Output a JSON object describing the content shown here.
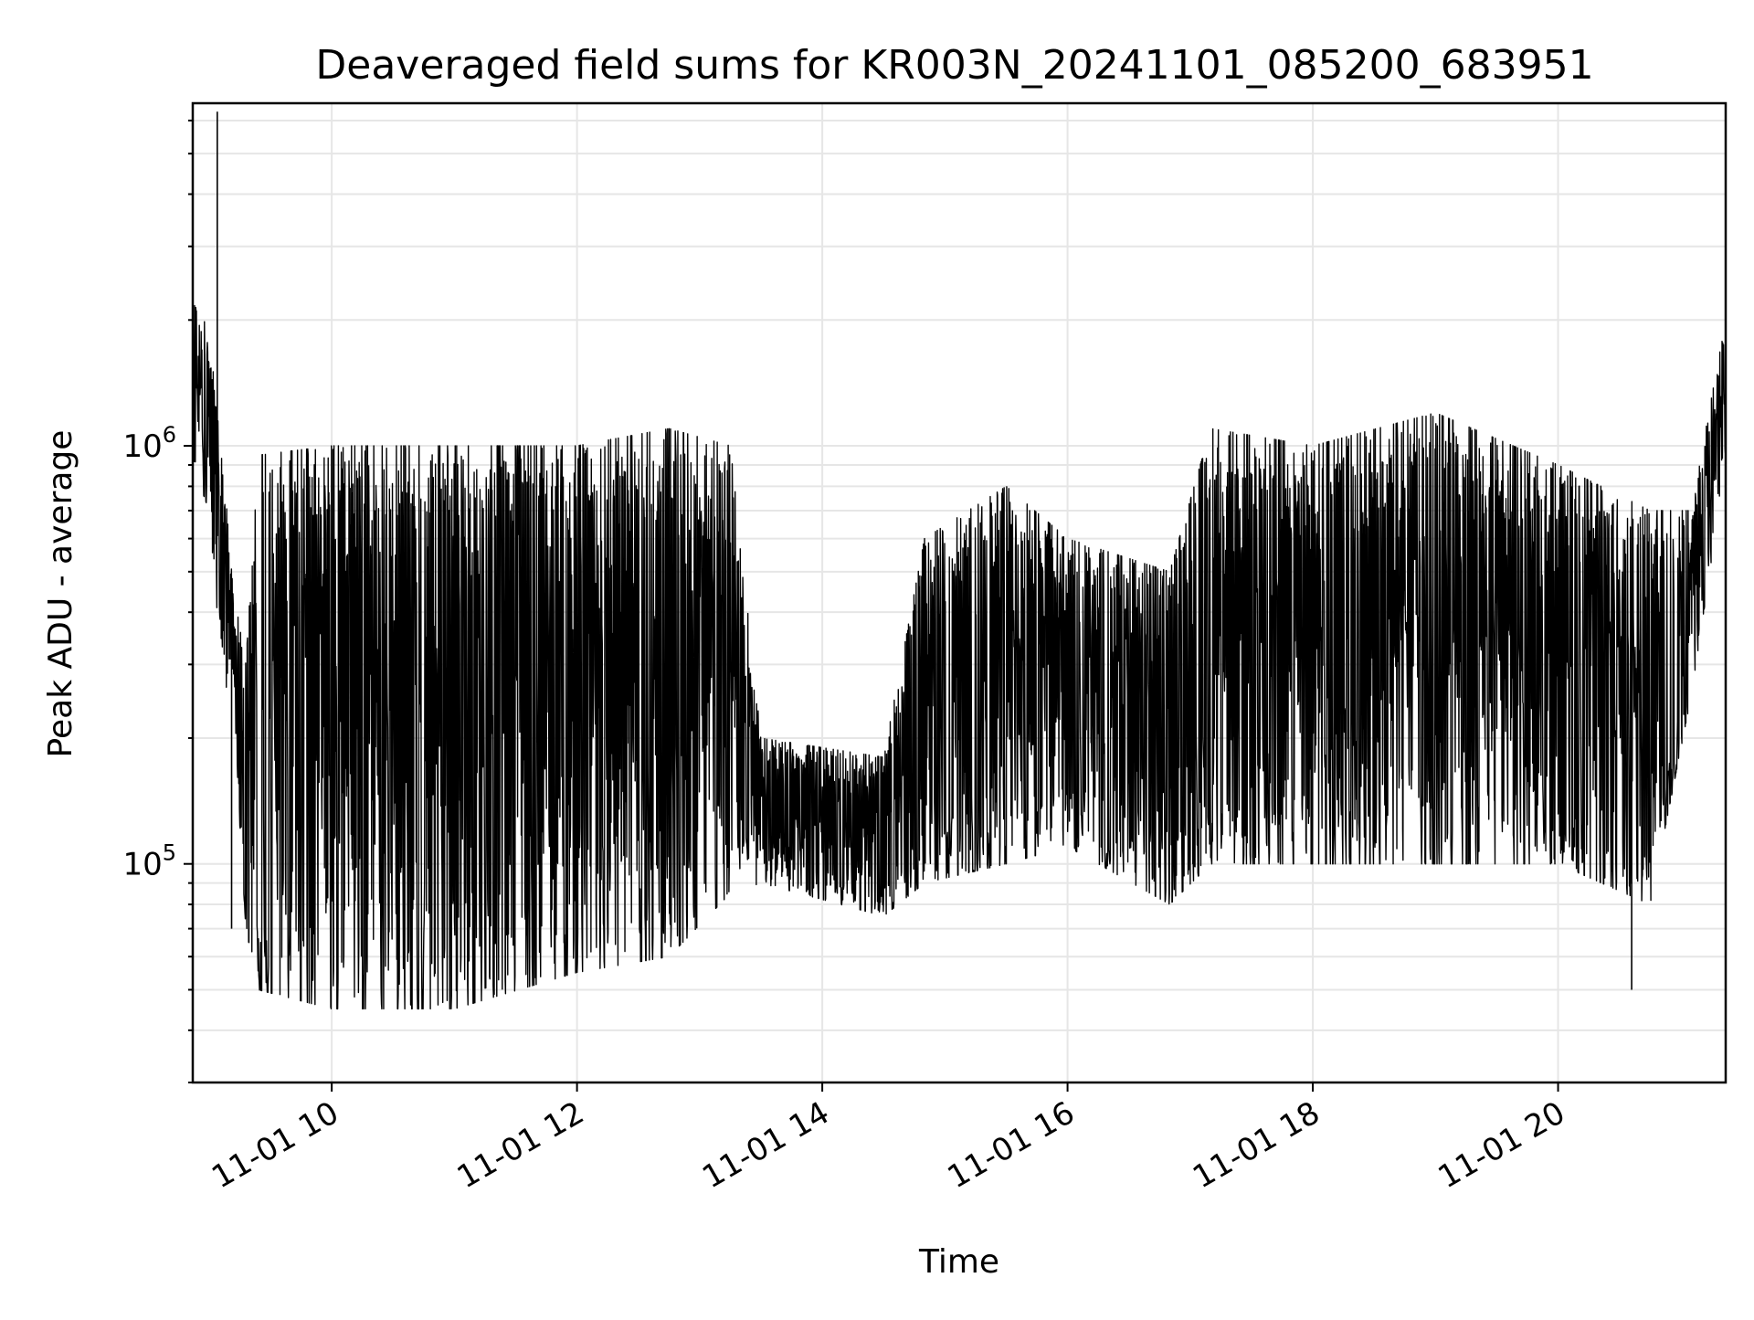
{
  "chart_data": {
    "type": "line",
    "title": "Deaveraged field sums for KR003N_20241101_085200_683951",
    "xlabel": "Time",
    "ylabel": "Peak ADU - average",
    "xscale": "time",
    "yscale": "log",
    "xlim": [
      "2024-11-01 08:52",
      "2024-11-01 21:22"
    ],
    "ylim": [
      30000,
      6600000
    ],
    "x_ticks": [
      "11-01 10",
      "11-01 12",
      "11-01 14",
      "11-01 16",
      "11-01 18",
      "11-01 20"
    ],
    "y_ticks": [
      {
        "base": "10",
        "exp": "5",
        "value": 100000
      },
      {
        "base": "10",
        "exp": "6",
        "value": 1000000
      }
    ],
    "grid": true,
    "legend": "none",
    "line_color": "#000000",
    "series_profile": [
      {
        "time": "2024-11-01 08:52",
        "low": 900000,
        "high": 2200000
      },
      {
        "time": "2024-11-01 09:00",
        "low": 700000,
        "high": 1900000
      },
      {
        "time": "2024-11-01 09:06",
        "low": 300000,
        "high": 1000000
      },
      {
        "time": "2024-11-01 09:12",
        "low": 220000,
        "high": 450000
      },
      {
        "time": "2024-11-01 09:18",
        "low": 70000,
        "high": 300000
      },
      {
        "time": "2024-11-01 09:24",
        "low": 50000,
        "high": 950000
      },
      {
        "time": "2024-11-01 10:00",
        "low": 45000,
        "high": 1000000
      },
      {
        "time": "2024-11-01 11:00",
        "low": 45000,
        "high": 1000000
      },
      {
        "time": "2024-11-01 12:00",
        "low": 55000,
        "high": 1000000
      },
      {
        "time": "2024-11-01 12:45",
        "low": 60000,
        "high": 1100000
      },
      {
        "time": "2024-11-01 13:15",
        "low": 85000,
        "high": 1000000
      },
      {
        "time": "2024-11-01 13:30",
        "low": 90000,
        "high": 200000
      },
      {
        "time": "2024-11-01 14:30",
        "low": 75000,
        "high": 180000
      },
      {
        "time": "2024-11-01 14:50",
        "low": 90000,
        "high": 600000
      },
      {
        "time": "2024-11-01 15:30",
        "low": 100000,
        "high": 800000
      },
      {
        "time": "2024-11-01 16:00",
        "low": 110000,
        "high": 600000
      },
      {
        "time": "2024-11-01 16:50",
        "low": 80000,
        "high": 500000
      },
      {
        "time": "2024-11-01 17:10",
        "low": 100000,
        "high": 1100000
      },
      {
        "time": "2024-11-01 18:00",
        "low": 100000,
        "high": 1000000
      },
      {
        "time": "2024-11-01 19:00",
        "low": 100000,
        "high": 1200000
      },
      {
        "time": "2024-11-01 20:00",
        "low": 100000,
        "high": 900000
      },
      {
        "time": "2024-11-01 20:45",
        "low": 80000,
        "high": 700000
      },
      {
        "time": "2024-11-01 21:05",
        "low": 250000,
        "high": 700000
      },
      {
        "time": "2024-11-01 21:22",
        "low": 900000,
        "high": 2000000
      }
    ],
    "spikes": [
      {
        "time": "2024-11-01 09:04",
        "value": 6300000
      },
      {
        "time": "2024-11-01 09:11",
        "value": 70000
      },
      {
        "time": "2024-11-01 20:36",
        "value": 50000
      }
    ]
  }
}
